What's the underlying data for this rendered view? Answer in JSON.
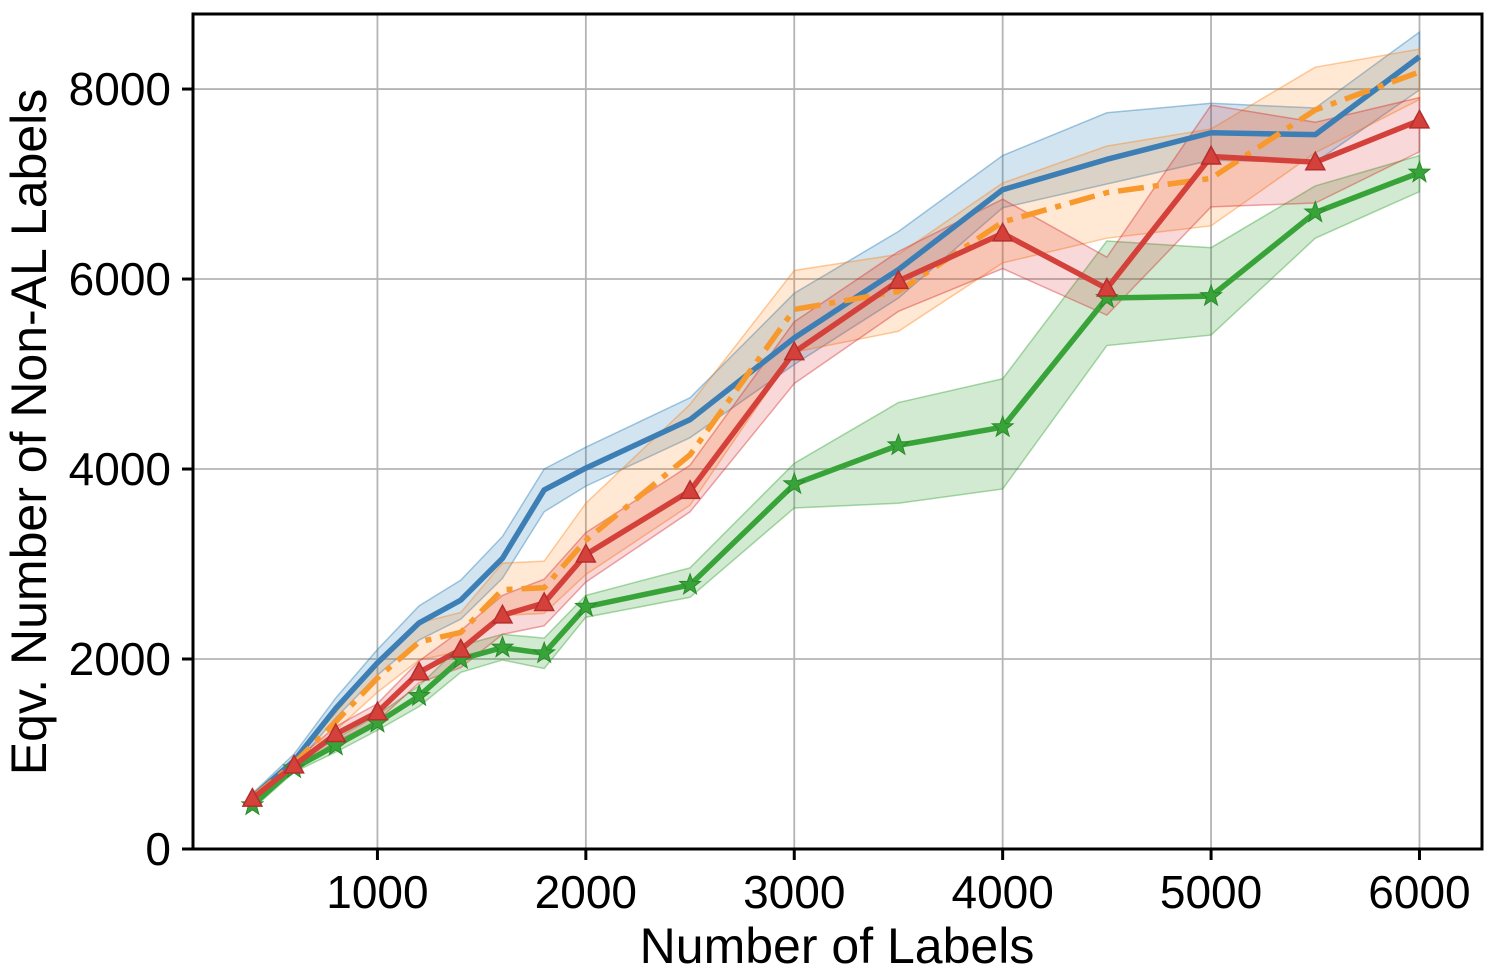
{
  "figure": {
    "title": "",
    "xlabel": "Number of Labels",
    "ylabel": "Eqv. Number of Non-AL Labels",
    "grid": true,
    "legend": "none",
    "background": "#ffffff",
    "grid_color": "#b4b4b4",
    "spine_color": "#000000",
    "chart_data": {
      "type": "line",
      "xlim": [
        115,
        6300
      ],
      "ylim": [
        0,
        8790
      ],
      "xticks": [
        1000,
        2000,
        3000,
        4000,
        5000,
        6000
      ],
      "yticks": [
        0,
        2000,
        4000,
        6000,
        8000
      ],
      "x": [
        400,
        600,
        800,
        1000,
        1200,
        1400,
        1600,
        1800,
        2000,
        2500,
        3000,
        3500,
        4000,
        4500,
        5000,
        5500,
        6000
      ],
      "series": [
        {
          "name": "blue-solid",
          "color": "#3d7fb5",
          "band_color": "#1f77b4",
          "band_opacity": 0.2,
          "line_style": "solid",
          "marker": "none",
          "values": [
            545,
            930,
            1480,
            1960,
            2380,
            2620,
            3060,
            3780,
            4010,
            4520,
            5380,
            6100,
            6940,
            7260,
            7540,
            7520,
            8340
          ],
          "lower": [
            505,
            865,
            1380,
            1830,
            2200,
            2420,
            2850,
            3550,
            3820,
            4330,
            5100,
            5800,
            6750,
            7000,
            7250,
            7230,
            7990
          ],
          "upper": [
            585,
            1000,
            1590,
            2100,
            2560,
            2830,
            3290,
            4000,
            4230,
            4750,
            5850,
            6500,
            7300,
            7750,
            7850,
            7800,
            8600
          ]
        },
        {
          "name": "orange-dashdot",
          "color": "#f8992d",
          "band_color": "#ff7f0e",
          "band_opacity": 0.18,
          "line_style": "dashdot",
          "marker": "none",
          "values": [
            540,
            900,
            1340,
            1800,
            2180,
            2280,
            2730,
            2750,
            3250,
            4150,
            5680,
            5870,
            6600,
            6910,
            7060,
            7780,
            8180
          ],
          "lower": [
            500,
            850,
            1250,
            1650,
            1990,
            2080,
            2460,
            2480,
            2890,
            3620,
            5230,
            5450,
            6170,
            6430,
            6560,
            7330,
            7890
          ],
          "upper": [
            580,
            950,
            1430,
            1960,
            2380,
            2490,
            3010,
            3030,
            3640,
            4680,
            6090,
            6260,
            7010,
            7400,
            7580,
            8230,
            8420
          ]
        },
        {
          "name": "green-star",
          "color": "#38a338",
          "band_color": "#2ca02c",
          "band_opacity": 0.22,
          "line_style": "solid",
          "marker": "star",
          "marker_edge": "#2a8a2a",
          "values": [
            460,
            850,
            1090,
            1330,
            1610,
            2000,
            2120,
            2060,
            2550,
            2780,
            3840,
            4250,
            4440,
            5800,
            5820,
            6700,
            7120
          ],
          "lower": [
            420,
            810,
            1020,
            1250,
            1500,
            1860,
            1990,
            1900,
            2440,
            2650,
            3590,
            3640,
            3790,
            5300,
            5410,
            6430,
            6920
          ],
          "upper": [
            500,
            890,
            1160,
            1410,
            1720,
            2140,
            2260,
            2220,
            2670,
            2960,
            4060,
            4700,
            4950,
            6400,
            6330,
            6980,
            7300
          ]
        },
        {
          "name": "red-triangle",
          "color": "#d4403a",
          "band_color": "#d62728",
          "band_opacity": 0.18,
          "line_style": "solid",
          "marker": "triangle",
          "marker_edge": "#b52e2e",
          "values": [
            530,
            880,
            1210,
            1440,
            1860,
            2100,
            2460,
            2590,
            3100,
            3770,
            5230,
            5980,
            6480,
            5900,
            7290,
            7230,
            7670
          ],
          "lower": [
            490,
            840,
            1130,
            1350,
            1750,
            1910,
            2260,
            2350,
            2810,
            3550,
            4900,
            5660,
            6110,
            5620,
            6760,
            6800,
            7340
          ],
          "upper": [
            570,
            920,
            1290,
            1530,
            1980,
            2300,
            2670,
            2840,
            3330,
            4040,
            5550,
            6290,
            6840,
            6230,
            7830,
            7650,
            7910
          ]
        }
      ]
    }
  }
}
